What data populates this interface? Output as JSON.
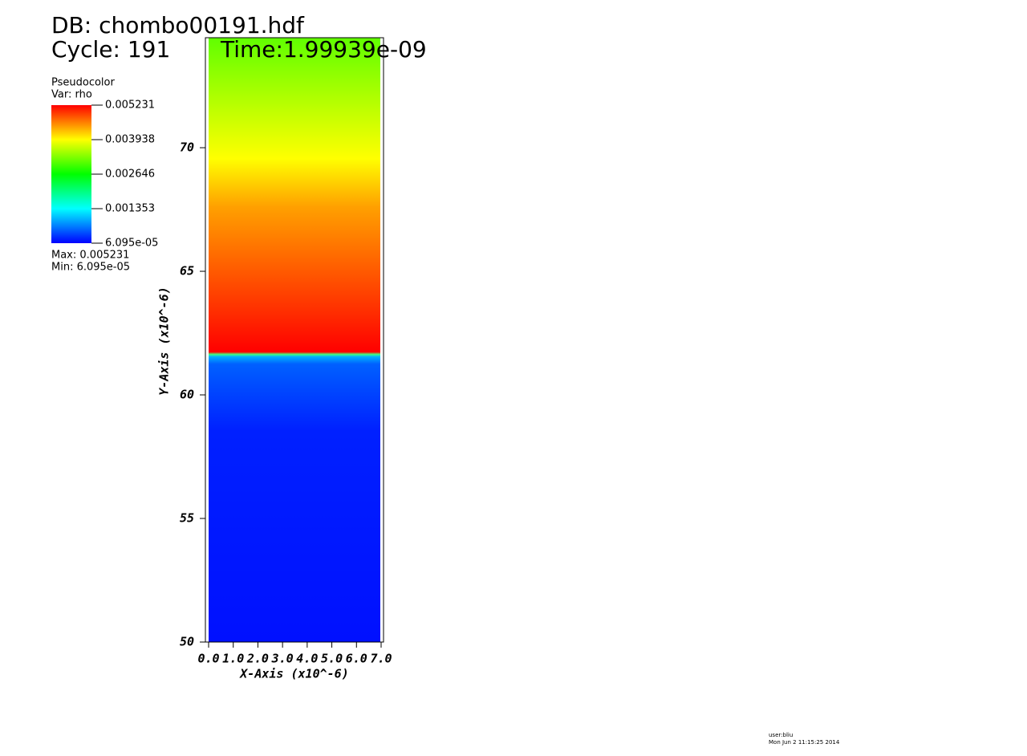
{
  "chart_data": {
    "type": "pseudocolor",
    "title": "DB: chombo00191.hdf",
    "cycle": "Cycle: 191",
    "time": "Time:1.99939e-09",
    "legend": {
      "plot": "Pseudocolor",
      "var": "Var: rho",
      "ticks": [
        "0.005231",
        "0.003938",
        "0.002646",
        "0.001353",
        "6.095e-05"
      ],
      "colors": [
        "#ff0000",
        "#ffff00",
        "#00ff00",
        "#00ffff",
        "#0000ff"
      ],
      "max": "Max:  0.005231",
      "min": "Min:  6.095e-05"
    },
    "xlabel": "X-Axis (x10^-6)",
    "ylabel": "Y-Axis (x10^-6)",
    "xlim": [
      0,
      7.0
    ],
    "ylim": [
      50,
      74.45
    ],
    "xticks": [
      {
        "value": 0,
        "label": "0.0"
      },
      {
        "value": 1,
        "label": "1.0"
      },
      {
        "value": 2,
        "label": "2.0"
      },
      {
        "value": 3,
        "label": "3.0"
      },
      {
        "value": 4,
        "label": "4.0"
      },
      {
        "value": 5,
        "label": "5.0"
      },
      {
        "value": 6,
        "label": "6.0"
      },
      {
        "value": 7,
        "label": "7.0"
      }
    ],
    "yticks": [
      50,
      55,
      60,
      65,
      70
    ],
    "user": "user:bliu",
    "date": "Mon Jun  2 11:15:25 2014"
  }
}
